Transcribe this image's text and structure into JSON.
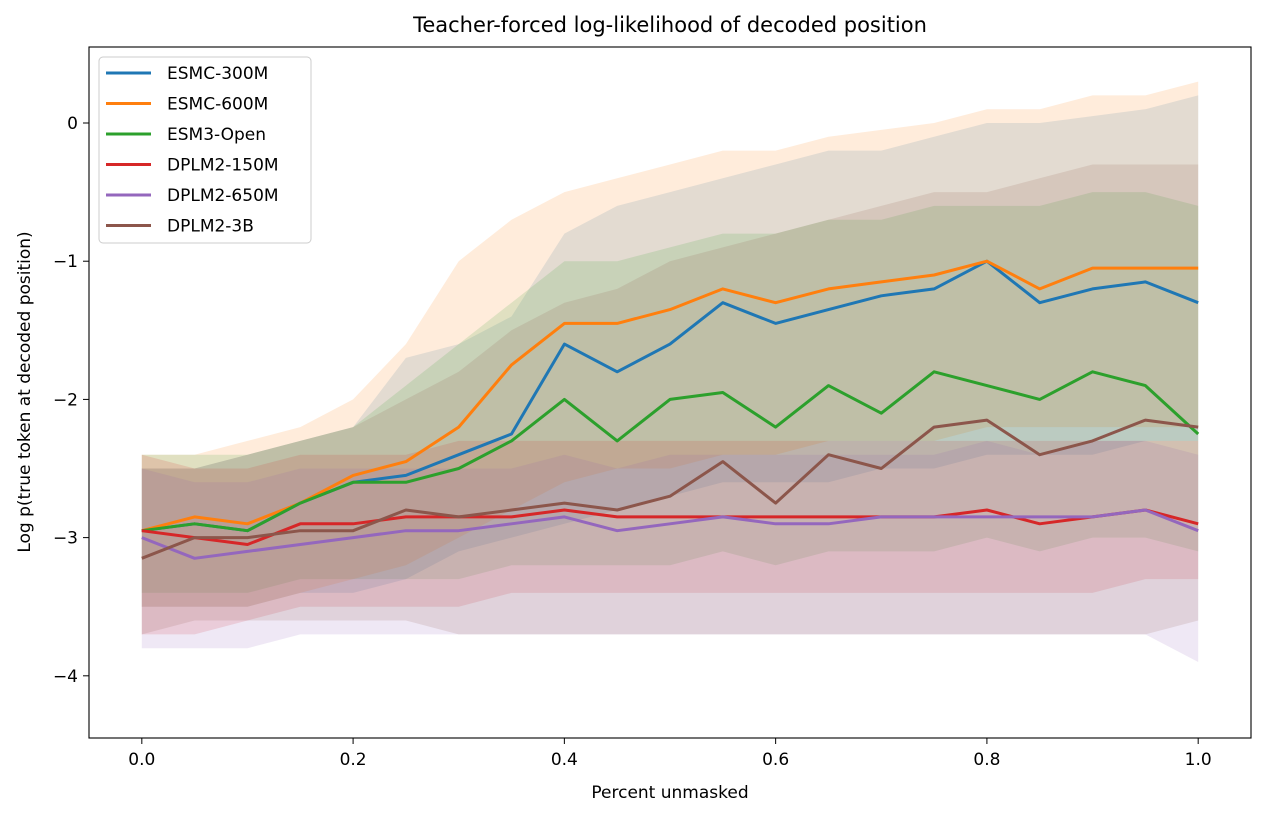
{
  "chart_data": {
    "type": "line",
    "title": "Teacher-forced log-likelihood of decoded position",
    "xlabel": "Percent unmasked",
    "ylabel": "Log p(true token at decoded position)",
    "xlim": [
      -0.05,
      1.05
    ],
    "ylim": [
      -4.45,
      0.55
    ],
    "xticks": [
      0.0,
      0.2,
      0.4,
      0.6,
      0.8,
      1.0
    ],
    "xtick_labels": [
      "0.0",
      "0.2",
      "0.4",
      "0.6",
      "0.8",
      "1.0"
    ],
    "yticks": [
      -4,
      -3,
      -2,
      -1,
      0
    ],
    "ytick_labels": [
      "−4",
      "−3",
      "−2",
      "−1",
      "0"
    ],
    "grid": false,
    "legend_position": "top-left",
    "shaded_band": "mean ± spread per series",
    "x": [
      0.0,
      0.05,
      0.1,
      0.15,
      0.2,
      0.25,
      0.3,
      0.35,
      0.4,
      0.45,
      0.5,
      0.55,
      0.6,
      0.65,
      0.7,
      0.75,
      0.8,
      0.85,
      0.9,
      0.95,
      1.0
    ],
    "series": [
      {
        "name": "ESMC-300M",
        "color": "#1f77b4",
        "values": [
          -2.95,
          -2.9,
          -2.95,
          -2.75,
          -2.6,
          -2.55,
          -2.4,
          -2.25,
          -1.6,
          -1.8,
          -1.6,
          -1.3,
          -1.45,
          -1.35,
          -1.25,
          -1.2,
          -1.0,
          -1.3,
          -1.2,
          -1.15,
          -1.3
        ],
        "lower": [
          -3.5,
          -3.5,
          -3.5,
          -3.4,
          -3.4,
          -3.3,
          -3.1,
          -3.0,
          -2.9,
          -2.8,
          -2.7,
          -2.6,
          -2.6,
          -2.6,
          -2.5,
          -2.5,
          -2.4,
          -2.4,
          -2.4,
          -2.3,
          -2.3
        ],
        "upper": [
          -2.5,
          -2.5,
          -2.4,
          -2.3,
          -2.2,
          -1.7,
          -1.6,
          -1.4,
          -0.8,
          -0.6,
          -0.5,
          -0.4,
          -0.3,
          -0.2,
          -0.2,
          -0.1,
          0.0,
          0.0,
          0.05,
          0.1,
          0.2
        ]
      },
      {
        "name": "ESMC-600M",
        "color": "#ff7f0e",
        "values": [
          -2.95,
          -2.85,
          -2.9,
          -2.75,
          -2.55,
          -2.45,
          -2.2,
          -1.75,
          -1.45,
          -1.45,
          -1.35,
          -1.2,
          -1.3,
          -1.2,
          -1.15,
          -1.1,
          -1.0,
          -1.2,
          -1.05,
          -1.05,
          -1.05
        ],
        "lower": [
          -3.5,
          -3.5,
          -3.5,
          -3.4,
          -3.3,
          -3.2,
          -3.0,
          -2.8,
          -2.6,
          -2.5,
          -2.5,
          -2.4,
          -2.4,
          -2.3,
          -2.3,
          -2.3,
          -2.2,
          -2.2,
          -2.2,
          -2.2,
          -2.2
        ],
        "upper": [
          -2.4,
          -2.4,
          -2.3,
          -2.2,
          -2.0,
          -1.6,
          -1.0,
          -0.7,
          -0.5,
          -0.4,
          -0.3,
          -0.2,
          -0.2,
          -0.1,
          -0.05,
          0.0,
          0.1,
          0.1,
          0.2,
          0.2,
          0.3
        ]
      },
      {
        "name": "ESM3-Open",
        "color": "#2ca02c",
        "values": [
          -2.95,
          -2.9,
          -2.95,
          -2.75,
          -2.6,
          -2.6,
          -2.5,
          -2.3,
          -2.0,
          -2.3,
          -2.0,
          -1.95,
          -2.2,
          -1.9,
          -2.1,
          -1.8,
          -1.9,
          -2.0,
          -1.8,
          -1.9,
          -2.25
        ],
        "lower": [
          -3.4,
          -3.4,
          -3.4,
          -3.3,
          -3.3,
          -3.3,
          -3.3,
          -3.2,
          -3.2,
          -3.2,
          -3.2,
          -3.1,
          -3.2,
          -3.1,
          -3.1,
          -3.1,
          -3.0,
          -3.1,
          -3.0,
          -3.0,
          -3.1
        ],
        "upper": [
          -2.4,
          -2.4,
          -2.4,
          -2.3,
          -2.2,
          -1.9,
          -1.6,
          -1.3,
          -1.0,
          -1.0,
          -0.9,
          -0.8,
          -0.8,
          -0.7,
          -0.7,
          -0.6,
          -0.6,
          -0.6,
          -0.5,
          -0.5,
          -0.6
        ]
      },
      {
        "name": "DPLM2-150M",
        "color": "#d62728",
        "values": [
          -2.95,
          -3.0,
          -3.05,
          -2.9,
          -2.9,
          -2.85,
          -2.85,
          -2.85,
          -2.8,
          -2.85,
          -2.85,
          -2.85,
          -2.85,
          -2.85,
          -2.85,
          -2.85,
          -2.8,
          -2.9,
          -2.85,
          -2.8,
          -2.9
        ],
        "lower": [
          -3.7,
          -3.7,
          -3.6,
          -3.5,
          -3.5,
          -3.5,
          -3.5,
          -3.4,
          -3.4,
          -3.4,
          -3.4,
          -3.4,
          -3.4,
          -3.4,
          -3.4,
          -3.4,
          -3.4,
          -3.4,
          -3.4,
          -3.3,
          -3.3
        ],
        "upper": [
          -2.4,
          -2.5,
          -2.5,
          -2.4,
          -2.4,
          -2.4,
          -2.3,
          -2.3,
          -2.3,
          -2.3,
          -2.3,
          -2.3,
          -2.3,
          -2.3,
          -2.3,
          -2.3,
          -2.3,
          -2.3,
          -2.3,
          -2.3,
          -2.3
        ]
      },
      {
        "name": "DPLM2-650M",
        "color": "#9467bd",
        "values": [
          -3.0,
          -3.15,
          -3.1,
          -3.05,
          -3.0,
          -2.95,
          -2.95,
          -2.9,
          -2.85,
          -2.95,
          -2.9,
          -2.85,
          -2.9,
          -2.9,
          -2.85,
          -2.85,
          -2.85,
          -2.85,
          -2.85,
          -2.8,
          -2.95
        ],
        "lower": [
          -3.8,
          -3.8,
          -3.8,
          -3.7,
          -3.7,
          -3.7,
          -3.7,
          -3.7,
          -3.7,
          -3.7,
          -3.7,
          -3.7,
          -3.7,
          -3.7,
          -3.7,
          -3.7,
          -3.7,
          -3.7,
          -3.7,
          -3.7,
          -3.9
        ],
        "upper": [
          -2.5,
          -2.6,
          -2.6,
          -2.5,
          -2.5,
          -2.5,
          -2.5,
          -2.5,
          -2.4,
          -2.5,
          -2.4,
          -2.4,
          -2.4,
          -2.4,
          -2.4,
          -2.4,
          -2.3,
          -2.4,
          -2.3,
          -2.3,
          -2.4
        ]
      },
      {
        "name": "DPLM2-3B",
        "color": "#8c564b",
        "values": [
          -3.15,
          -3.0,
          -3.0,
          -2.95,
          -2.95,
          -2.8,
          -2.85,
          -2.8,
          -2.75,
          -2.8,
          -2.7,
          -2.45,
          -2.75,
          -2.4,
          -2.5,
          -2.2,
          -2.15,
          -2.4,
          -2.3,
          -2.15,
          -2.2
        ],
        "lower": [
          -3.7,
          -3.6,
          -3.6,
          -3.6,
          -3.6,
          -3.6,
          -3.7,
          -3.7,
          -3.7,
          -3.7,
          -3.7,
          -3.7,
          -3.7,
          -3.7,
          -3.7,
          -3.7,
          -3.7,
          -3.7,
          -3.7,
          -3.7,
          -3.6
        ],
        "upper": [
          -2.5,
          -2.5,
          -2.4,
          -2.3,
          -2.2,
          -2.0,
          -1.8,
          -1.5,
          -1.3,
          -1.2,
          -1.0,
          -0.9,
          -0.8,
          -0.7,
          -0.6,
          -0.5,
          -0.5,
          -0.4,
          -0.3,
          -0.3,
          -0.3
        ]
      }
    ]
  }
}
